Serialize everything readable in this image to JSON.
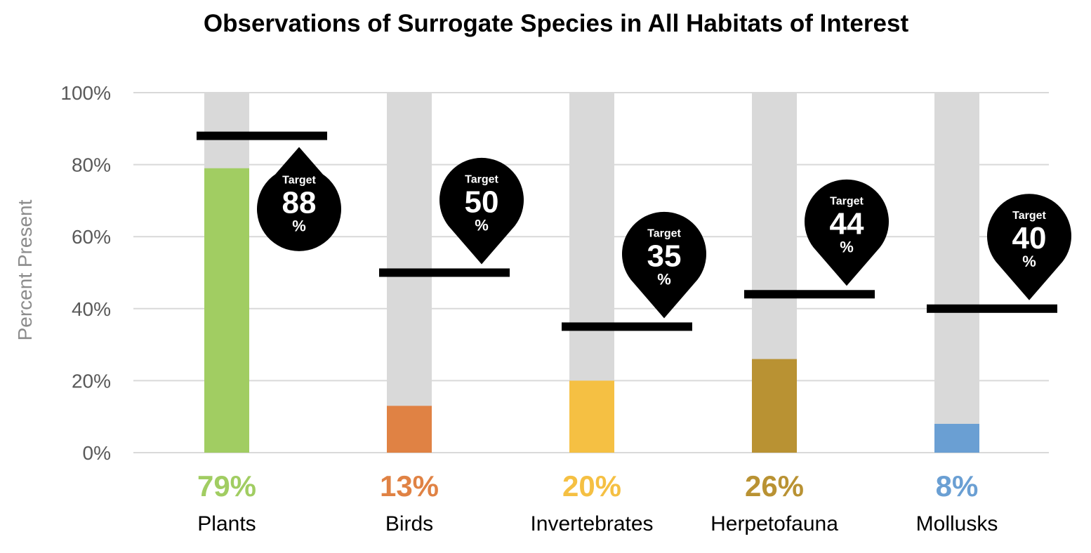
{
  "chart_data": {
    "type": "bar",
    "title": "Observations of Surrogate Species in All Habitats of Interest",
    "ylabel": "Percent Present",
    "xlabel": "",
    "ylim": [
      0,
      100
    ],
    "yticks": [
      "0%",
      "20%",
      "40%",
      "60%",
      "80%",
      "100%"
    ],
    "yticks_values": [
      0,
      20,
      40,
      60,
      80,
      100
    ],
    "grid": true,
    "background_bar_color": "#d9d9d9",
    "target_label_word": "Target",
    "target_label_unit": "%",
    "categories": [
      "Plants",
      "Birds",
      "Invertebrates",
      "Herpetofauna",
      "Mollusks"
    ],
    "values": [
      79,
      13,
      20,
      26,
      8
    ],
    "value_labels": [
      "79%",
      "13%",
      "20%",
      "26%",
      "8%"
    ],
    "targets": [
      88,
      50,
      35,
      44,
      40
    ],
    "target_labels": [
      "88",
      "50",
      "35",
      "44",
      "40"
    ],
    "colors": [
      "#a1cd62",
      "#e08244",
      "#f5c043",
      "#b99233",
      "#6a9fd3"
    ]
  }
}
